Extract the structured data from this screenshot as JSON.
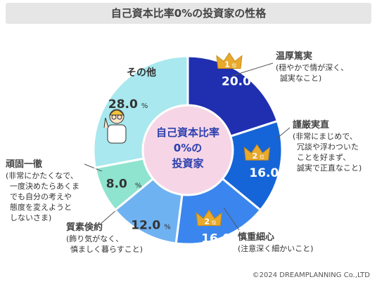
{
  "title": "自己資本比率0%の投資家の性格",
  "center_label": [
    "自己資本比率",
    "0%の",
    "投資家"
  ],
  "credit": "©2024 DREAMPLANNING Co.,LTD",
  "colors": {
    "navy": "#1f2fb0",
    "blue": "#1565d8",
    "mid": "#3b86ee",
    "light": "#6fb2f2",
    "mint": "#8fe4cf",
    "aqua": "#a8e8ee",
    "center": "#f6d6e6",
    "crown": "#e8a92c"
  },
  "chart_data": {
    "type": "pie",
    "title": "自己資本比率0%の投資家の性格",
    "slices": [
      {
        "name": "温厚篤実",
        "desc": [
          "(穏やかで情が深く、",
          "誠実なこと)"
        ],
        "value": 20.0,
        "rank": "1",
        "color": "#1f2fb0"
      },
      {
        "name": "謹厳実直",
        "desc": [
          "(非常にまじめで、",
          "冗談や浮わついた",
          "ことを好まず、",
          "誠実で正直なこと)"
        ],
        "value": 16.0,
        "rank": "2",
        "color": "#1565d8"
      },
      {
        "name": "慎重細心",
        "desc": [
          "(注意深く細かいこと)"
        ],
        "value": 16.0,
        "rank": "2",
        "color": "#3b86ee"
      },
      {
        "name": "質素倹約",
        "desc": [
          "(飾り気がなく、",
          "慎ましく暮らすこと)"
        ],
        "value": 12.0,
        "rank": "",
        "color": "#6fb2f2"
      },
      {
        "name": "頑固一徹",
        "desc": [
          "(非常にかたくなで、",
          "一度決めたらあくま",
          "でも自分の考えや",
          "態度を変えようと",
          "しないさま)"
        ],
        "value": 8.0,
        "rank": "",
        "color": "#8fe4cf"
      },
      {
        "name": "その他",
        "desc": [],
        "value": 28.0,
        "rank": "",
        "color": "#a8e8ee"
      }
    ],
    "value_unit": "%",
    "rank_suffix": "位"
  }
}
